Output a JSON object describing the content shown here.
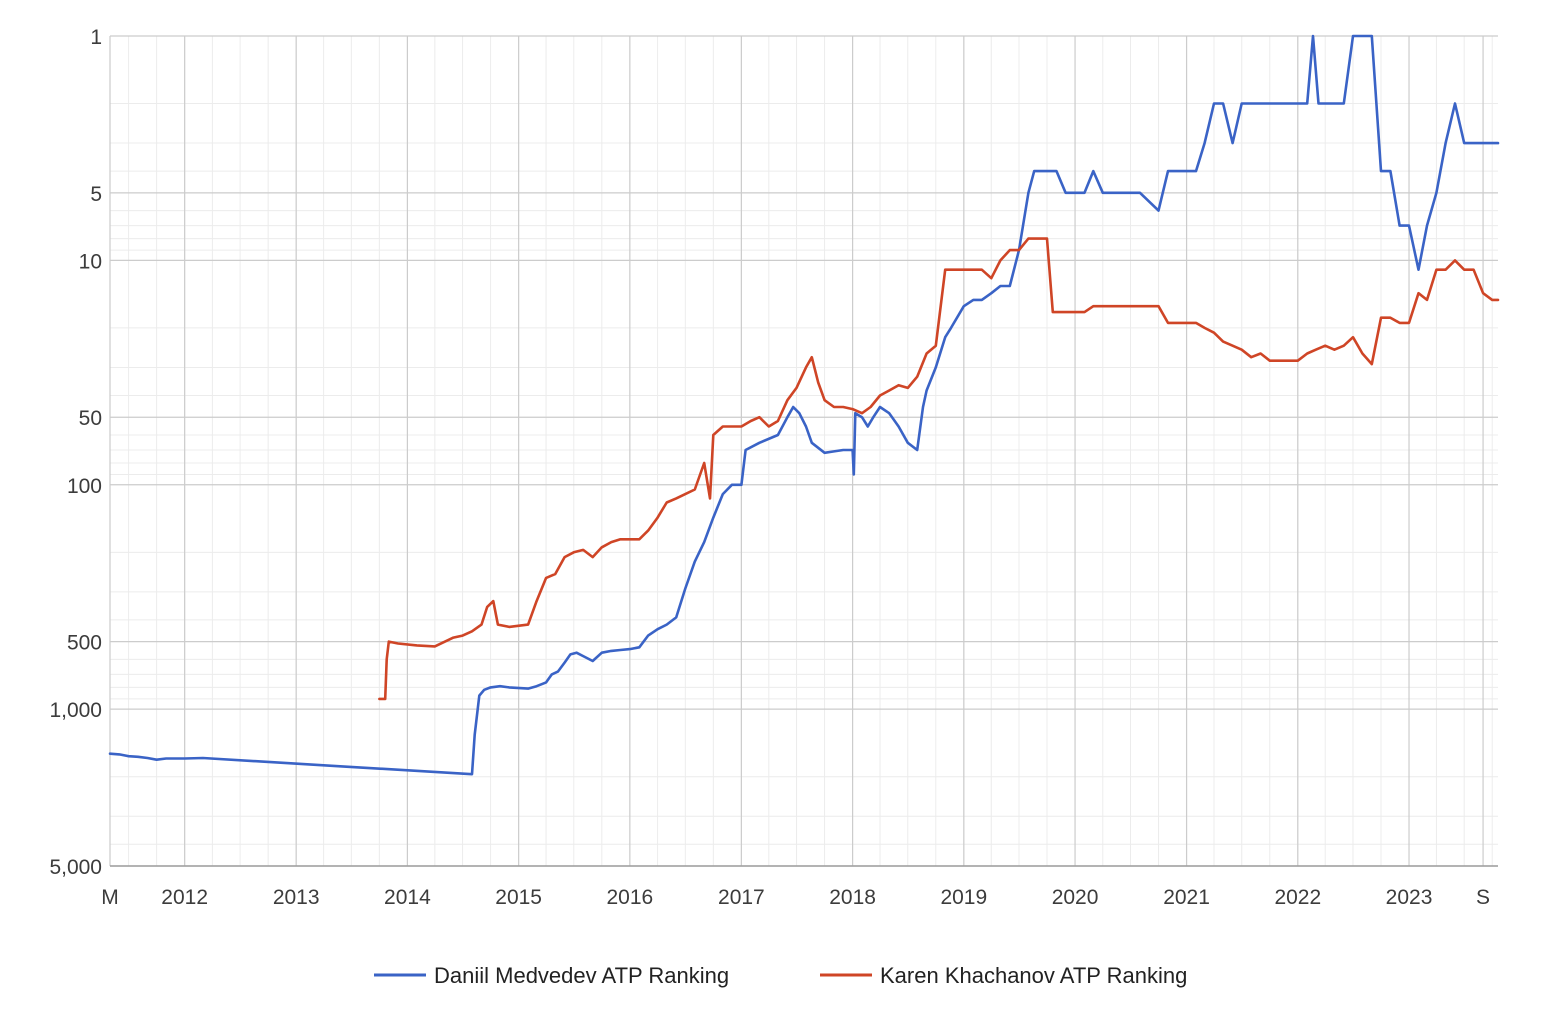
{
  "chart_data": {
    "type": "line",
    "title": "",
    "xlabel": "",
    "ylabel": "",
    "y_scale": "log",
    "y_reversed": true,
    "ylim": [
      1,
      5000
    ],
    "xlim": [
      "2011-05-01",
      "2023-10-20"
    ],
    "grid": true,
    "legend_position": "bottom",
    "y_ticks": [
      {
        "value": 1,
        "label": "1"
      },
      {
        "value": 5,
        "label": "5"
      },
      {
        "value": 10,
        "label": "10"
      },
      {
        "value": 50,
        "label": "50"
      },
      {
        "value": 100,
        "label": "100"
      },
      {
        "value": 500,
        "label": "500"
      },
      {
        "value": 1000,
        "label": "1,000"
      },
      {
        "value": 5000,
        "label": "5,000"
      }
    ],
    "x_ticks": [
      {
        "date": "2011-05-01",
        "label": "M"
      },
      {
        "date": "2012-01-01",
        "label": "2012"
      },
      {
        "date": "2013-01-01",
        "label": "2013"
      },
      {
        "date": "2014-01-01",
        "label": "2014"
      },
      {
        "date": "2015-01-01",
        "label": "2015"
      },
      {
        "date": "2016-01-01",
        "label": "2016"
      },
      {
        "date": "2017-01-01",
        "label": "2017"
      },
      {
        "date": "2018-01-01",
        "label": "2018"
      },
      {
        "date": "2019-01-01",
        "label": "2019"
      },
      {
        "date": "2020-01-01",
        "label": "2020"
      },
      {
        "date": "2021-01-01",
        "label": "2021"
      },
      {
        "date": "2022-01-01",
        "label": "2022"
      },
      {
        "date": "2023-01-01",
        "label": "2023"
      },
      {
        "date": "2023-09-01",
        "label": "S"
      }
    ],
    "series": [
      {
        "name": "Daniil Medvedev ATP Ranking",
        "color": "#3a63c6",
        "points": [
          [
            "2011-05-01",
            1580
          ],
          [
            "2011-06-01",
            1590
          ],
          [
            "2011-07-01",
            1620
          ],
          [
            "2011-08-01",
            1630
          ],
          [
            "2011-09-01",
            1650
          ],
          [
            "2011-10-01",
            1680
          ],
          [
            "2011-11-01",
            1660
          ],
          [
            "2012-01-01",
            1660
          ],
          [
            "2012-03-01",
            1650
          ],
          [
            "2013-06-01",
            1800
          ],
          [
            "2014-08-01",
            1950
          ],
          [
            "2014-08-10",
            1300
          ],
          [
            "2014-08-25",
            870
          ],
          [
            "2014-09-10",
            820
          ],
          [
            "2014-10-01",
            800
          ],
          [
            "2014-11-01",
            790
          ],
          [
            "2014-12-01",
            800
          ],
          [
            "2015-02-01",
            810
          ],
          [
            "2015-03-01",
            790
          ],
          [
            "2015-04-01",
            760
          ],
          [
            "2015-04-20",
            700
          ],
          [
            "2015-05-10",
            680
          ],
          [
            "2015-06-01",
            620
          ],
          [
            "2015-06-20",
            570
          ],
          [
            "2015-07-10",
            560
          ],
          [
            "2015-08-01",
            580
          ],
          [
            "2015-09-01",
            610
          ],
          [
            "2015-10-01",
            560
          ],
          [
            "2015-11-01",
            550
          ],
          [
            "2015-12-01",
            545
          ],
          [
            "2016-01-01",
            540
          ],
          [
            "2016-02-01",
            530
          ],
          [
            "2016-03-01",
            470
          ],
          [
            "2016-04-01",
            440
          ],
          [
            "2016-05-01",
            420
          ],
          [
            "2016-06-01",
            390
          ],
          [
            "2016-07-01",
            290
          ],
          [
            "2016-08-01",
            220
          ],
          [
            "2016-09-01",
            180
          ],
          [
            "2016-10-01",
            140
          ],
          [
            "2016-11-01",
            110
          ],
          [
            "2016-12-01",
            100
          ],
          [
            "2017-01-01",
            100
          ],
          [
            "2017-01-15",
            70
          ],
          [
            "2017-03-01",
            65
          ],
          [
            "2017-05-01",
            60
          ],
          [
            "2017-06-01",
            50
          ],
          [
            "2017-06-20",
            45
          ],
          [
            "2017-07-10",
            48
          ],
          [
            "2017-08-01",
            55
          ],
          [
            "2017-08-20",
            65
          ],
          [
            "2017-10-01",
            72
          ],
          [
            "2017-11-01",
            71
          ],
          [
            "2017-12-01",
            70
          ],
          [
            "2018-01-01",
            70
          ],
          [
            "2018-01-05",
            90
          ],
          [
            "2018-01-10",
            48
          ],
          [
            "2018-02-01",
            50
          ],
          [
            "2018-02-20",
            55
          ],
          [
            "2018-03-10",
            50
          ],
          [
            "2018-04-01",
            45
          ],
          [
            "2018-05-01",
            48
          ],
          [
            "2018-06-01",
            55
          ],
          [
            "2018-07-01",
            65
          ],
          [
            "2018-08-01",
            70
          ],
          [
            "2018-08-20",
            45
          ],
          [
            "2018-09-01",
            38
          ],
          [
            "2018-10-01",
            30
          ],
          [
            "2018-11-01",
            22
          ],
          [
            "2018-11-20",
            20
          ],
          [
            "2019-01-01",
            16
          ],
          [
            "2019-02-01",
            15
          ],
          [
            "2019-03-01",
            15
          ],
          [
            "2019-04-01",
            14
          ],
          [
            "2019-05-01",
            13
          ],
          [
            "2019-06-01",
            13
          ],
          [
            "2019-07-01",
            9
          ],
          [
            "2019-08-01",
            5
          ],
          [
            "2019-08-20",
            4
          ],
          [
            "2019-10-01",
            4
          ],
          [
            "2019-11-01",
            4
          ],
          [
            "2019-12-01",
            5
          ],
          [
            "2020-02-01",
            5
          ],
          [
            "2020-03-01",
            4
          ],
          [
            "2020-04-01",
            5
          ],
          [
            "2020-08-01",
            5
          ],
          [
            "2020-10-01",
            6
          ],
          [
            "2020-11-01",
            4
          ],
          [
            "2021-02-01",
            4
          ],
          [
            "2021-03-01",
            3
          ],
          [
            "2021-04-01",
            2
          ],
          [
            "2021-05-01",
            2
          ],
          [
            "2021-06-01",
            3
          ],
          [
            "2021-07-01",
            2
          ],
          [
            "2021-12-01",
            2
          ],
          [
            "2022-02-01",
            2
          ],
          [
            "2022-02-20",
            1
          ],
          [
            "2022-03-10",
            2
          ],
          [
            "2022-06-01",
            2
          ],
          [
            "2022-07-01",
            1
          ],
          [
            "2022-09-01",
            1
          ],
          [
            "2022-10-01",
            4
          ],
          [
            "2022-11-01",
            4
          ],
          [
            "2022-12-01",
            7
          ],
          [
            "2023-01-01",
            7
          ],
          [
            "2023-02-01",
            11
          ],
          [
            "2023-03-01",
            7
          ],
          [
            "2023-04-01",
            5
          ],
          [
            "2023-05-01",
            3
          ],
          [
            "2023-06-01",
            2
          ],
          [
            "2023-07-01",
            3
          ],
          [
            "2023-08-01",
            3
          ],
          [
            "2023-10-20",
            3
          ]
        ]
      },
      {
        "name": "Karen Khachanov ATP Ranking",
        "color": "#cf4526",
        "points": [
          [
            "2013-10-01",
            900
          ],
          [
            "2013-10-20",
            900
          ],
          [
            "2013-10-25",
            600
          ],
          [
            "2013-11-01",
            500
          ],
          [
            "2013-12-01",
            510
          ],
          [
            "2014-02-01",
            520
          ],
          [
            "2014-04-01",
            525
          ],
          [
            "2014-06-01",
            480
          ],
          [
            "2014-07-01",
            470
          ],
          [
            "2014-08-01",
            450
          ],
          [
            "2014-09-01",
            420
          ],
          [
            "2014-09-20",
            350
          ],
          [
            "2014-10-10",
            330
          ],
          [
            "2014-10-25",
            420
          ],
          [
            "2014-12-01",
            430
          ],
          [
            "2015-02-01",
            420
          ],
          [
            "2015-03-01",
            330
          ],
          [
            "2015-04-01",
            260
          ],
          [
            "2015-05-01",
            250
          ],
          [
            "2015-06-01",
            210
          ],
          [
            "2015-07-01",
            200
          ],
          [
            "2015-08-01",
            195
          ],
          [
            "2015-09-01",
            210
          ],
          [
            "2015-10-01",
            190
          ],
          [
            "2015-11-01",
            180
          ],
          [
            "2015-12-01",
            175
          ],
          [
            "2016-01-01",
            175
          ],
          [
            "2016-02-01",
            175
          ],
          [
            "2016-03-01",
            160
          ],
          [
            "2016-04-01",
            140
          ],
          [
            "2016-05-01",
            120
          ],
          [
            "2016-06-01",
            115
          ],
          [
            "2016-07-01",
            110
          ],
          [
            "2016-08-01",
            105
          ],
          [
            "2016-09-01",
            80
          ],
          [
            "2016-09-20",
            115
          ],
          [
            "2016-10-01",
            60
          ],
          [
            "2016-11-01",
            55
          ],
          [
            "2016-12-01",
            55
          ],
          [
            "2017-01-01",
            55
          ],
          [
            "2017-02-01",
            52
          ],
          [
            "2017-03-01",
            50
          ],
          [
            "2017-04-01",
            55
          ],
          [
            "2017-05-01",
            52
          ],
          [
            "2017-06-01",
            42
          ],
          [
            "2017-07-01",
            37
          ],
          [
            "2017-08-01",
            30
          ],
          [
            "2017-08-20",
            27
          ],
          [
            "2017-09-10",
            35
          ],
          [
            "2017-10-01",
            42
          ],
          [
            "2017-11-01",
            45
          ],
          [
            "2017-12-01",
            45
          ],
          [
            "2018-01-01",
            46
          ],
          [
            "2018-02-01",
            48
          ],
          [
            "2018-03-01",
            45
          ],
          [
            "2018-04-01",
            40
          ],
          [
            "2018-05-01",
            38
          ],
          [
            "2018-06-01",
            36
          ],
          [
            "2018-07-01",
            37
          ],
          [
            "2018-08-01",
            33
          ],
          [
            "2018-09-01",
            26
          ],
          [
            "2018-10-01",
            24
          ],
          [
            "2018-11-01",
            11
          ],
          [
            "2018-12-01",
            11
          ],
          [
            "2019-01-01",
            11
          ],
          [
            "2019-02-01",
            11
          ],
          [
            "2019-03-01",
            11
          ],
          [
            "2019-04-01",
            12
          ],
          [
            "2019-05-01",
            10
          ],
          [
            "2019-06-01",
            9
          ],
          [
            "2019-07-01",
            9
          ],
          [
            "2019-08-01",
            8
          ],
          [
            "2019-09-01",
            8
          ],
          [
            "2019-10-01",
            8
          ],
          [
            "2019-10-20",
            17
          ],
          [
            "2019-12-01",
            17
          ],
          [
            "2020-01-01",
            17
          ],
          [
            "2020-02-01",
            17
          ],
          [
            "2020-03-01",
            16
          ],
          [
            "2020-06-01",
            16
          ],
          [
            "2020-10-01",
            16
          ],
          [
            "2020-11-01",
            19
          ],
          [
            "2020-12-01",
            19
          ],
          [
            "2021-01-01",
            19
          ],
          [
            "2021-02-01",
            19
          ],
          [
            "2021-03-01",
            20
          ],
          [
            "2021-04-01",
            21
          ],
          [
            "2021-05-01",
            23
          ],
          [
            "2021-06-01",
            24
          ],
          [
            "2021-07-01",
            25
          ],
          [
            "2021-08-01",
            27
          ],
          [
            "2021-09-01",
            26
          ],
          [
            "2021-10-01",
            28
          ],
          [
            "2021-11-01",
            28
          ],
          [
            "2021-12-01",
            28
          ],
          [
            "2022-01-01",
            28
          ],
          [
            "2022-02-01",
            26
          ],
          [
            "2022-03-01",
            25
          ],
          [
            "2022-04-01",
            24
          ],
          [
            "2022-05-01",
            25
          ],
          [
            "2022-06-01",
            24
          ],
          [
            "2022-07-01",
            22
          ],
          [
            "2022-08-01",
            26
          ],
          [
            "2022-09-01",
            29
          ],
          [
            "2022-10-01",
            18
          ],
          [
            "2022-11-01",
            18
          ],
          [
            "2022-12-01",
            19
          ],
          [
            "2023-01-01",
            19
          ],
          [
            "2023-02-01",
            14
          ],
          [
            "2023-03-01",
            15
          ],
          [
            "2023-04-01",
            11
          ],
          [
            "2023-05-01",
            11
          ],
          [
            "2023-06-01",
            10
          ],
          [
            "2023-07-01",
            11
          ],
          [
            "2023-08-01",
            11
          ],
          [
            "2023-09-01",
            14
          ],
          [
            "2023-10-01",
            15
          ],
          [
            "2023-10-20",
            15
          ]
        ]
      }
    ]
  }
}
